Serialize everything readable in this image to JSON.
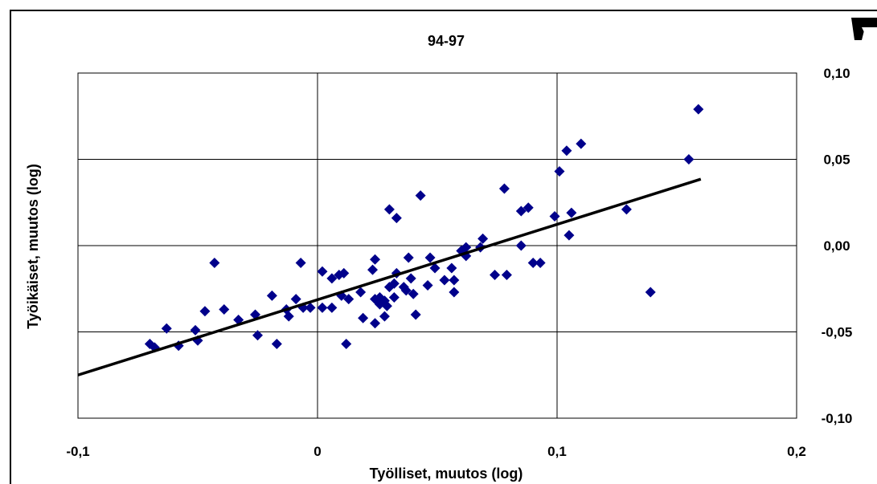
{
  "chart_data": {
    "type": "scatter",
    "title": "94-97",
    "xlabel": "Työlliset, muutos (log)",
    "ylabel": "Työikäiset, muutos (log)",
    "xlim": [
      -0.1,
      0.2
    ],
    "ylim": [
      -0.1,
      0.1
    ],
    "x_ticks": [
      -0.1,
      0,
      0.1,
      0.2
    ],
    "x_tick_labels": [
      "-0,1",
      "0",
      "0,1",
      "0,2"
    ],
    "y_ticks": [
      -0.1,
      -0.05,
      0,
      0.05,
      0.1
    ],
    "y_tick_labels": [
      "-0,10",
      "-0,05",
      "0,00",
      "0,05",
      "0,10"
    ],
    "y_axis_side": "right",
    "grid": true,
    "legend": "none",
    "marker_color": "#00008b",
    "trendline_color": "#000000",
    "trendline": {
      "x": [
        -0.1,
        0.16
      ],
      "y": [
        -0.075,
        0.0385
      ]
    },
    "points": [
      {
        "x": -0.07,
        "y": -0.057
      },
      {
        "x": -0.068,
        "y": -0.059
      },
      {
        "x": -0.063,
        "y": -0.048
      },
      {
        "x": -0.058,
        "y": -0.058
      },
      {
        "x": -0.051,
        "y": -0.049
      },
      {
        "x": -0.05,
        "y": -0.055
      },
      {
        "x": -0.047,
        "y": -0.038
      },
      {
        "x": -0.043,
        "y": -0.01
      },
      {
        "x": -0.039,
        "y": -0.037
      },
      {
        "x": -0.033,
        "y": -0.043
      },
      {
        "x": -0.026,
        "y": -0.04
      },
      {
        "x": -0.025,
        "y": -0.052
      },
      {
        "x": -0.019,
        "y": -0.029
      },
      {
        "x": -0.017,
        "y": -0.057
      },
      {
        "x": -0.013,
        "y": -0.037
      },
      {
        "x": -0.012,
        "y": -0.041
      },
      {
        "x": -0.009,
        "y": -0.031
      },
      {
        "x": -0.007,
        "y": -0.01
      },
      {
        "x": -0.006,
        "y": -0.036
      },
      {
        "x": -0.003,
        "y": -0.036
      },
      {
        "x": 0.002,
        "y": -0.036
      },
      {
        "x": 0.002,
        "y": -0.015
      },
      {
        "x": 0.006,
        "y": -0.036
      },
      {
        "x": 0.006,
        "y": -0.019
      },
      {
        "x": 0.009,
        "y": -0.017
      },
      {
        "x": 0.01,
        "y": -0.029
      },
      {
        "x": 0.011,
        "y": -0.016
      },
      {
        "x": 0.012,
        "y": -0.057
      },
      {
        "x": 0.013,
        "y": -0.031
      },
      {
        "x": 0.018,
        "y": -0.027
      },
      {
        "x": 0.019,
        "y": -0.042
      },
      {
        "x": 0.023,
        "y": -0.014
      },
      {
        "x": 0.024,
        "y": -0.008
      },
      {
        "x": 0.024,
        "y": -0.031
      },
      {
        "x": 0.024,
        "y": -0.045
      },
      {
        "x": 0.026,
        "y": -0.034
      },
      {
        "x": 0.026,
        "y": -0.03
      },
      {
        "x": 0.028,
        "y": -0.032
      },
      {
        "x": 0.028,
        "y": -0.041
      },
      {
        "x": 0.029,
        "y": -0.035
      },
      {
        "x": 0.03,
        "y": 0.021
      },
      {
        "x": 0.03,
        "y": -0.024
      },
      {
        "x": 0.032,
        "y": -0.022
      },
      {
        "x": 0.032,
        "y": -0.03
      },
      {
        "x": 0.033,
        "y": 0.016
      },
      {
        "x": 0.033,
        "y": -0.016
      },
      {
        "x": 0.036,
        "y": -0.024
      },
      {
        "x": 0.037,
        "y": -0.026
      },
      {
        "x": 0.038,
        "y": -0.007
      },
      {
        "x": 0.039,
        "y": -0.019
      },
      {
        "x": 0.04,
        "y": -0.028
      },
      {
        "x": 0.041,
        "y": -0.04
      },
      {
        "x": 0.043,
        "y": 0.029
      },
      {
        "x": 0.046,
        "y": -0.023
      },
      {
        "x": 0.047,
        "y": -0.007
      },
      {
        "x": 0.049,
        "y": -0.013
      },
      {
        "x": 0.053,
        "y": -0.02
      },
      {
        "x": 0.056,
        "y": -0.013
      },
      {
        "x": 0.057,
        "y": -0.02
      },
      {
        "x": 0.057,
        "y": -0.027
      },
      {
        "x": 0.06,
        "y": -0.003
      },
      {
        "x": 0.062,
        "y": -0.006
      },
      {
        "x": 0.062,
        "y": -0.001
      },
      {
        "x": 0.068,
        "y": -0.001
      },
      {
        "x": 0.069,
        "y": 0.004
      },
      {
        "x": 0.074,
        "y": -0.017
      },
      {
        "x": 0.078,
        "y": 0.033
      },
      {
        "x": 0.079,
        "y": -0.017
      },
      {
        "x": 0.085,
        "y": 0.0
      },
      {
        "x": 0.085,
        "y": 0.02
      },
      {
        "x": 0.088,
        "y": 0.022
      },
      {
        "x": 0.09,
        "y": -0.01
      },
      {
        "x": 0.093,
        "y": -0.01
      },
      {
        "x": 0.099,
        "y": 0.017
      },
      {
        "x": 0.101,
        "y": 0.043
      },
      {
        "x": 0.104,
        "y": 0.055
      },
      {
        "x": 0.105,
        "y": 0.006
      },
      {
        "x": 0.106,
        "y": 0.019
      },
      {
        "x": 0.11,
        "y": 0.059
      },
      {
        "x": 0.129,
        "y": 0.021
      },
      {
        "x": 0.139,
        "y": -0.027
      },
      {
        "x": 0.155,
        "y": 0.05
      },
      {
        "x": 0.159,
        "y": 0.079
      }
    ]
  }
}
